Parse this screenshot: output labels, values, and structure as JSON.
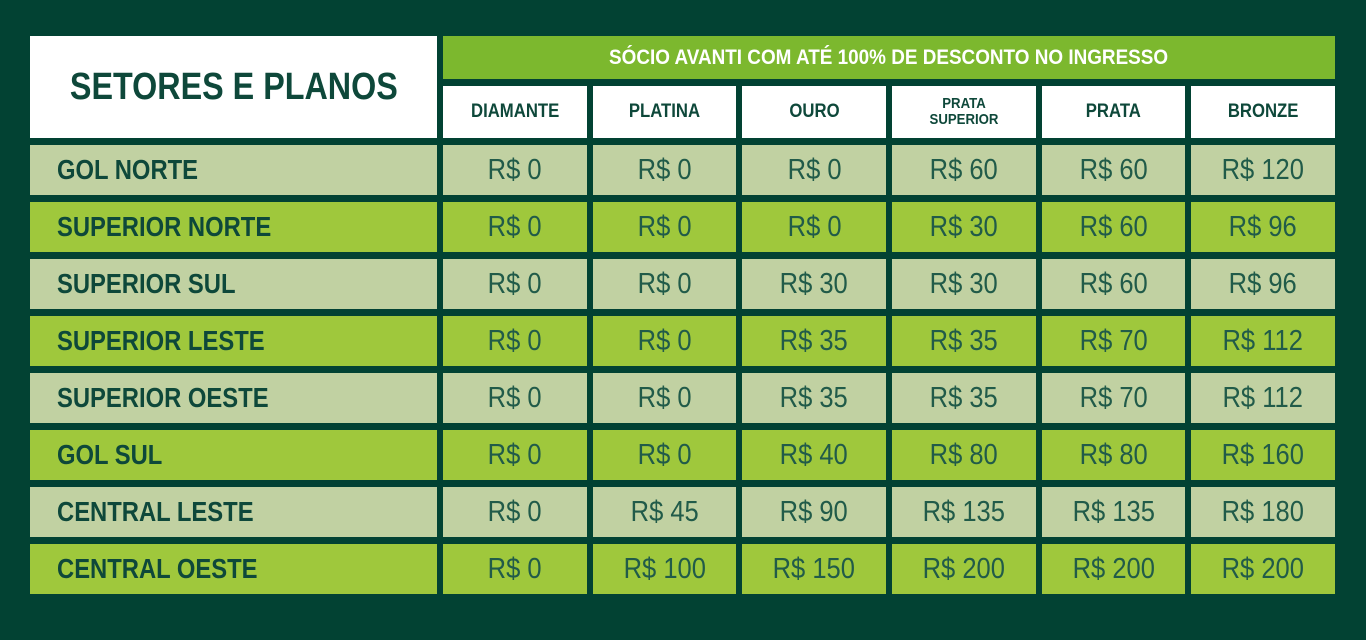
{
  "chart_data": {
    "type": "table",
    "title": "SETORES E PLANOS",
    "banner": "SÓCIO AVANTI COM ATÉ 100% DE DESCONTO NO INGRESSO",
    "columns": [
      "DIAMANTE",
      "PLATINA",
      "OURO",
      "PRATA SUPERIOR",
      "PRATA",
      "BRONZE"
    ],
    "rows": [
      {
        "sector": "GOL NORTE",
        "prices": [
          "R$ 0",
          "R$ 0",
          "R$ 0",
          "R$ 60",
          "R$ 60",
          "R$ 120"
        ]
      },
      {
        "sector": "SUPERIOR NORTE",
        "prices": [
          "R$ 0",
          "R$ 0",
          "R$ 0",
          "R$ 30",
          "R$ 60",
          "R$ 96"
        ]
      },
      {
        "sector": "SUPERIOR SUL",
        "prices": [
          "R$ 0",
          "R$ 0",
          "R$ 30",
          "R$ 30",
          "R$ 60",
          "R$ 96"
        ]
      },
      {
        "sector": "SUPERIOR LESTE",
        "prices": [
          "R$ 0",
          "R$ 0",
          "R$ 35",
          "R$ 35",
          "R$ 70",
          "R$ 112"
        ]
      },
      {
        "sector": "SUPERIOR OESTE",
        "prices": [
          "R$ 0",
          "R$ 0",
          "R$ 35",
          "R$ 35",
          "R$ 70",
          "R$ 112"
        ]
      },
      {
        "sector": "GOL SUL",
        "prices": [
          "R$ 0",
          "R$ 0",
          "R$ 40",
          "R$ 80",
          "R$ 80",
          "R$ 160"
        ]
      },
      {
        "sector": "CENTRAL LESTE",
        "prices": [
          "R$ 0",
          "R$ 45",
          "R$ 90",
          "R$ 135",
          "R$ 135",
          "R$ 180"
        ]
      },
      {
        "sector": "CENTRAL OESTE",
        "prices": [
          "R$ 0",
          "R$ 100",
          "R$ 150",
          "R$ 200",
          "R$ 200",
          "R$ 200"
        ]
      }
    ]
  },
  "colors": {
    "background": "#024233",
    "banner_green": "#7cb82e",
    "row_bright": "#9fc83c",
    "row_pale": "#c1d1a2",
    "cell_white": "#ffffff",
    "text_dark": "#0e483a",
    "text_value": "#215b49"
  }
}
